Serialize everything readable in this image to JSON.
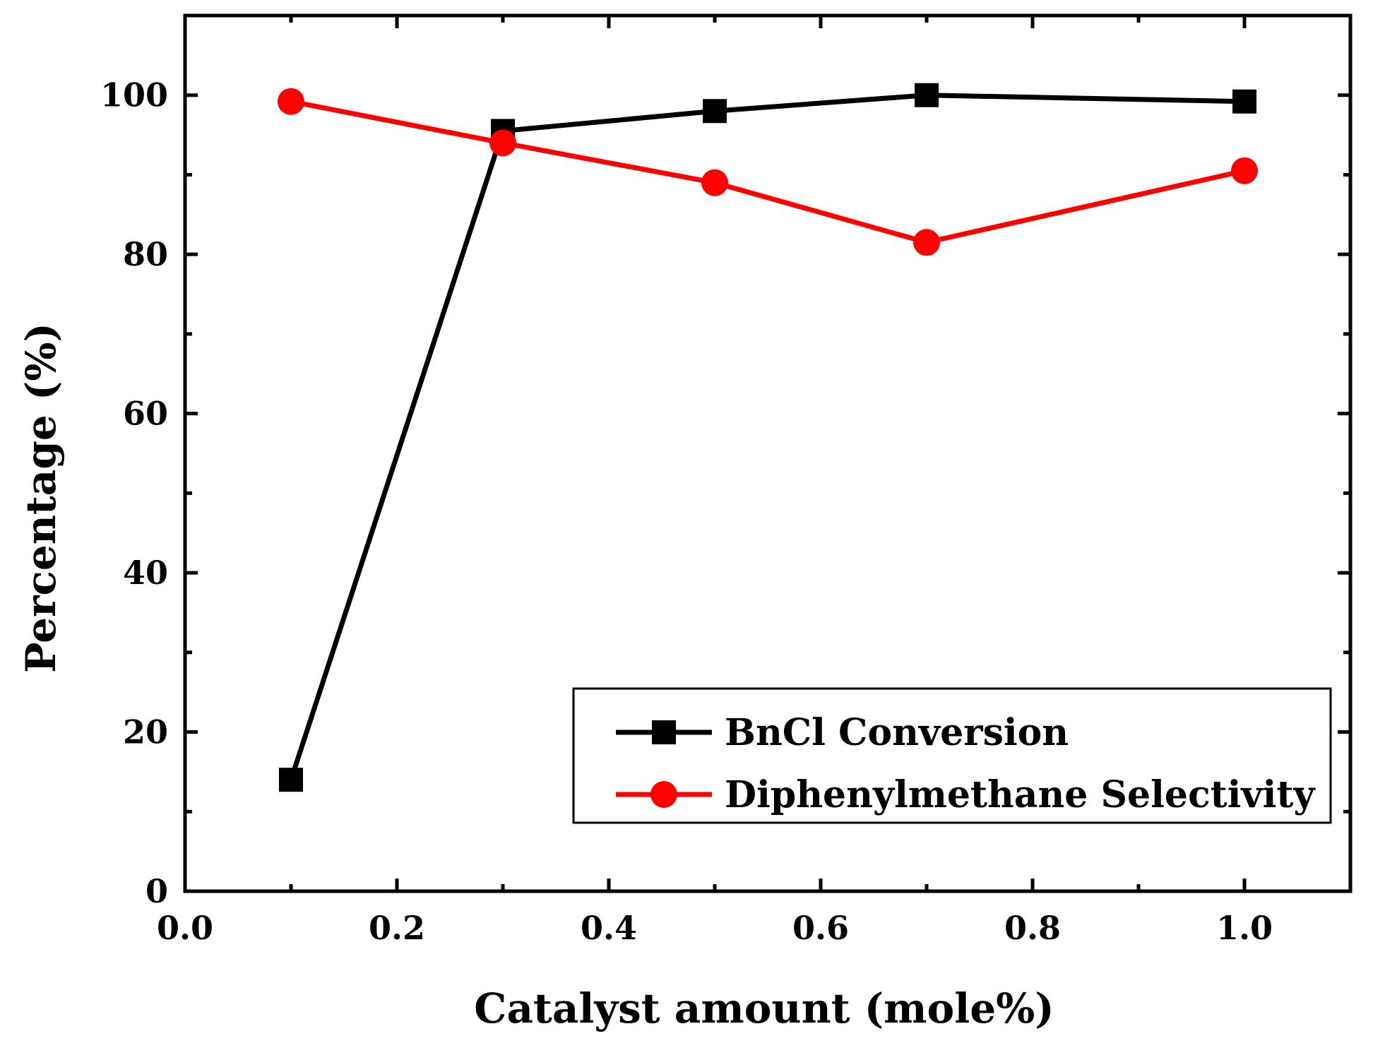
{
  "chart_data": {
    "type": "line",
    "title": "",
    "xlabel": "Catalyst amount (mole%)",
    "ylabel": "Percentage (%)",
    "xlim": [
      0.0,
      1.1
    ],
    "ylim": [
      0,
      110
    ],
    "x_ticks": [
      0.0,
      0.2,
      0.4,
      0.6,
      0.8,
      1.0
    ],
    "x_tick_labels": [
      "0.0",
      "0.2",
      "0.4",
      "0.6",
      "0.8",
      "1.0"
    ],
    "y_ticks": [
      0,
      20,
      40,
      60,
      80,
      100
    ],
    "y_tick_labels": [
      "0",
      "20",
      "40",
      "60",
      "80",
      "100"
    ],
    "grid": false,
    "legend_position": "bottom-right",
    "series": [
      {
        "name": "BnCl Conversion",
        "color": "#000000",
        "marker": "square",
        "x": [
          0.1,
          0.3,
          0.5,
          0.7,
          1.0
        ],
        "values": [
          14,
          95.5,
          98,
          100,
          99.2
        ]
      },
      {
        "name": "Diphenylmethane Selectivity",
        "color": "#ff0000",
        "marker": "circle",
        "x": [
          0.1,
          0.3,
          0.5,
          0.7,
          1.0
        ],
        "values": [
          99.2,
          94,
          89,
          81.5,
          90.5
        ]
      }
    ]
  }
}
